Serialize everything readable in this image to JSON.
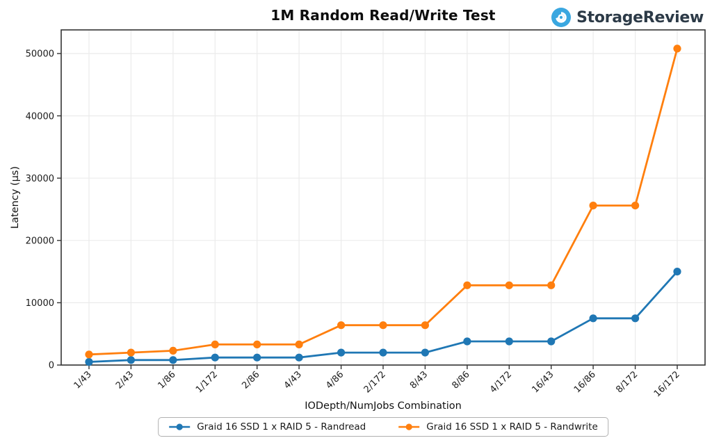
{
  "header": {
    "title": "1M Random Read/Write Test",
    "brand": "StorageReview",
    "brand_icon": "storagereview-drop-icon",
    "brand_icon_color": "#3aa7e0",
    "brand_text_color": "#2c3a47"
  },
  "chart_data": {
    "type": "line",
    "title": "1M Random Read/Write Test",
    "xlabel": "IODepth/NumJobs Combination",
    "ylabel": "Latency (µs)",
    "ylim": [
      0,
      53800
    ],
    "yticks": [
      0,
      10000,
      20000,
      30000,
      40000,
      50000
    ],
    "grid": true,
    "legend_position": "bottom",
    "categories": [
      "1/43",
      "2/43",
      "1/86",
      "1/172",
      "2/86",
      "4/43",
      "4/86",
      "2/172",
      "8/43",
      "8/86",
      "4/172",
      "16/43",
      "16/86",
      "8/172",
      "16/172"
    ],
    "series": [
      {
        "name": "Graid 16 SSD 1 x RAID 5 - Randread",
        "color": "#1f77b4",
        "values": [
          500,
          800,
          800,
          1200,
          1200,
          1200,
          2000,
          2000,
          2000,
          3800,
          3800,
          3800,
          7500,
          7500,
          15000
        ]
      },
      {
        "name": "Graid 16 SSD 1 x RAID 5 - Randwrite",
        "color": "#ff7f0e",
        "values": [
          1700,
          2000,
          2300,
          3300,
          3300,
          3300,
          6400,
          6400,
          6400,
          12800,
          12800,
          12800,
          25600,
          25600,
          50800
        ]
      }
    ]
  },
  "style_colors": {
    "grid": "#ebebeb",
    "spine": "#333333",
    "tick": "#333333",
    "tick_label": "#1a1a1a"
  }
}
